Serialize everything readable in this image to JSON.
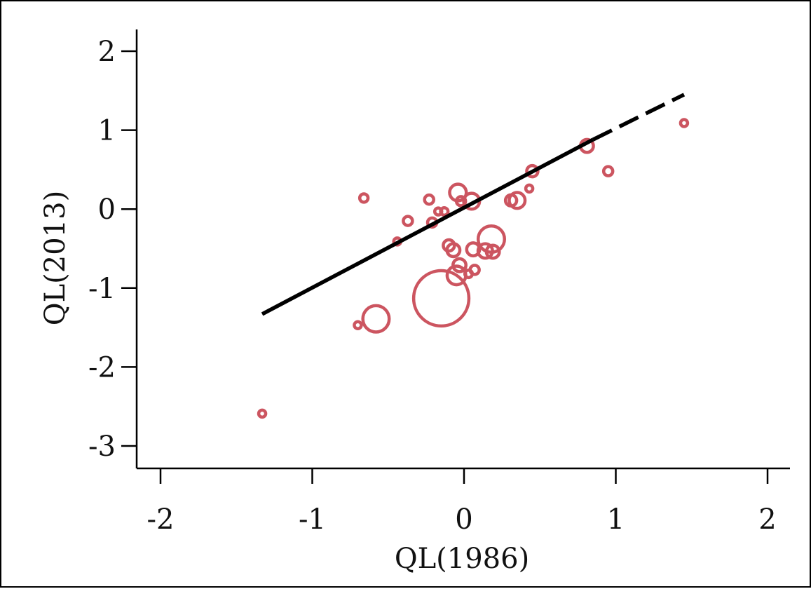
{
  "chart_data": {
    "type": "scatter",
    "title": "",
    "xlabel": "QL(1986)",
    "ylabel": "QL(2013)",
    "xlim": [
      -2.15,
      2.15
    ],
    "ylim": [
      -3.3,
      2.3
    ],
    "x_ticks": [
      -2,
      -1,
      0,
      1,
      2
    ],
    "y_ticks": [
      -3,
      -2,
      -1,
      0,
      1,
      2
    ],
    "x_tick_labels": [
      "-2",
      "-1",
      "0",
      "1",
      "2"
    ],
    "y_tick_labels": [
      "-3",
      "-2",
      "-1",
      "0",
      "1",
      "2"
    ],
    "grid": false,
    "marker_color": "#cc5560",
    "line_color": "#000000",
    "points": [
      {
        "x": -1.33,
        "y": -2.59,
        "weight": 0.3
      },
      {
        "x": -0.7,
        "y": -1.47,
        "weight": 0.3
      },
      {
        "x": -0.66,
        "y": 0.14,
        "weight": 0.5
      },
      {
        "x": -0.58,
        "y": -1.39,
        "weight": 5
      },
      {
        "x": -0.44,
        "y": -0.41,
        "weight": 0.2
      },
      {
        "x": -0.37,
        "y": -0.15,
        "weight": 0.6
      },
      {
        "x": -0.23,
        "y": 0.12,
        "weight": 0.6
      },
      {
        "x": -0.21,
        "y": -0.17,
        "weight": 0.6
      },
      {
        "x": -0.17,
        "y": -0.03,
        "weight": 0.3
      },
      {
        "x": -0.15,
        "y": -1.13,
        "weight": 22
      },
      {
        "x": -0.13,
        "y": -0.03,
        "weight": 0.4
      },
      {
        "x": -0.1,
        "y": -0.46,
        "weight": 0.9
      },
      {
        "x": -0.07,
        "y": -0.52,
        "weight": 1.2
      },
      {
        "x": -0.05,
        "y": -0.84,
        "weight": 2.5
      },
      {
        "x": -0.04,
        "y": 0.21,
        "weight": 2.0
      },
      {
        "x": -0.03,
        "y": -0.71,
        "weight": 1.2
      },
      {
        "x": -0.02,
        "y": 0.1,
        "weight": 0.6
      },
      {
        "x": 0.03,
        "y": -0.82,
        "weight": 0.4
      },
      {
        "x": 0.05,
        "y": 0.1,
        "weight": 1.8
      },
      {
        "x": 0.06,
        "y": -0.51,
        "weight": 1.2
      },
      {
        "x": 0.07,
        "y": -0.77,
        "weight": 0.6
      },
      {
        "x": 0.14,
        "y": -0.53,
        "weight": 1.5
      },
      {
        "x": 0.18,
        "y": -0.38,
        "weight": 5
      },
      {
        "x": 0.19,
        "y": -0.54,
        "weight": 1.2
      },
      {
        "x": 0.31,
        "y": 0.11,
        "weight": 0.9
      },
      {
        "x": 0.35,
        "y": 0.11,
        "weight": 1.8
      },
      {
        "x": 0.43,
        "y": 0.26,
        "weight": 0.3
      },
      {
        "x": 0.45,
        "y": 0.48,
        "weight": 0.9
      },
      {
        "x": 0.81,
        "y": 0.8,
        "weight": 1.2
      },
      {
        "x": 0.95,
        "y": 0.48,
        "weight": 0.6
      },
      {
        "x": 1.45,
        "y": 1.09,
        "weight": 0.3
      }
    ],
    "fit_line": {
      "x_start": -1.33,
      "y_start": -1.33,
      "x_solid_end": 0.85,
      "y_solid_end": 0.88,
      "x_end": 1.45,
      "y_end": 1.45,
      "style": "solid-then-dashed"
    }
  }
}
